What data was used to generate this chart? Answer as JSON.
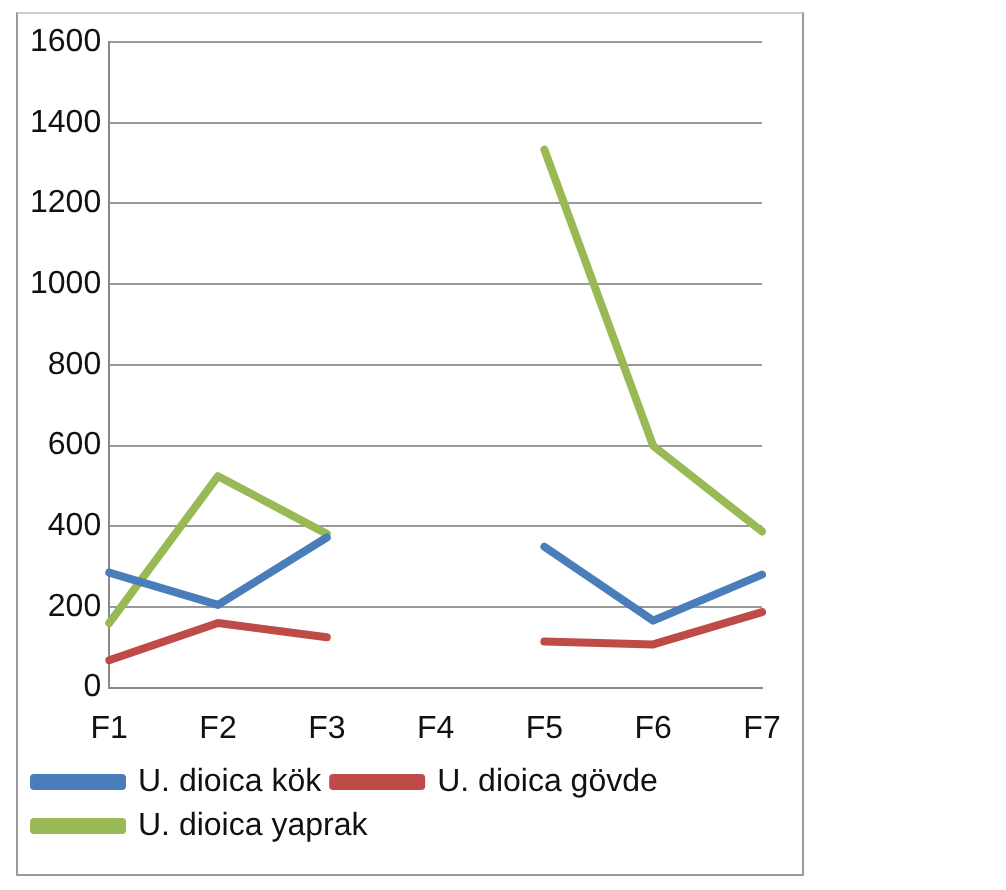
{
  "chart_data": {
    "type": "line",
    "categories": [
      "F1",
      "F2",
      "F3",
      "F4",
      "F5",
      "F6",
      "F7"
    ],
    "series": [
      {
        "name": "U. dioica kök",
        "color": "#4a7ebb",
        "values": [
          285,
          205,
          372,
          null,
          349,
          166,
          280
        ]
      },
      {
        "name": "U. dioica gövde",
        "color": "#be4b48",
        "values": [
          68,
          160,
          125,
          null,
          114,
          107,
          187
        ]
      },
      {
        "name": "U. dioica yaprak",
        "color": "#98b954",
        "values": [
          160,
          524,
          381,
          null,
          1333,
          599,
          387
        ]
      }
    ],
    "ylim": [
      0,
      1600
    ],
    "yticks": [
      0,
      200,
      400,
      600,
      800,
      1000,
      1200,
      1400,
      1600
    ],
    "grid": "y",
    "legend": "bottom",
    "marker": "none",
    "line_style": "solid"
  }
}
